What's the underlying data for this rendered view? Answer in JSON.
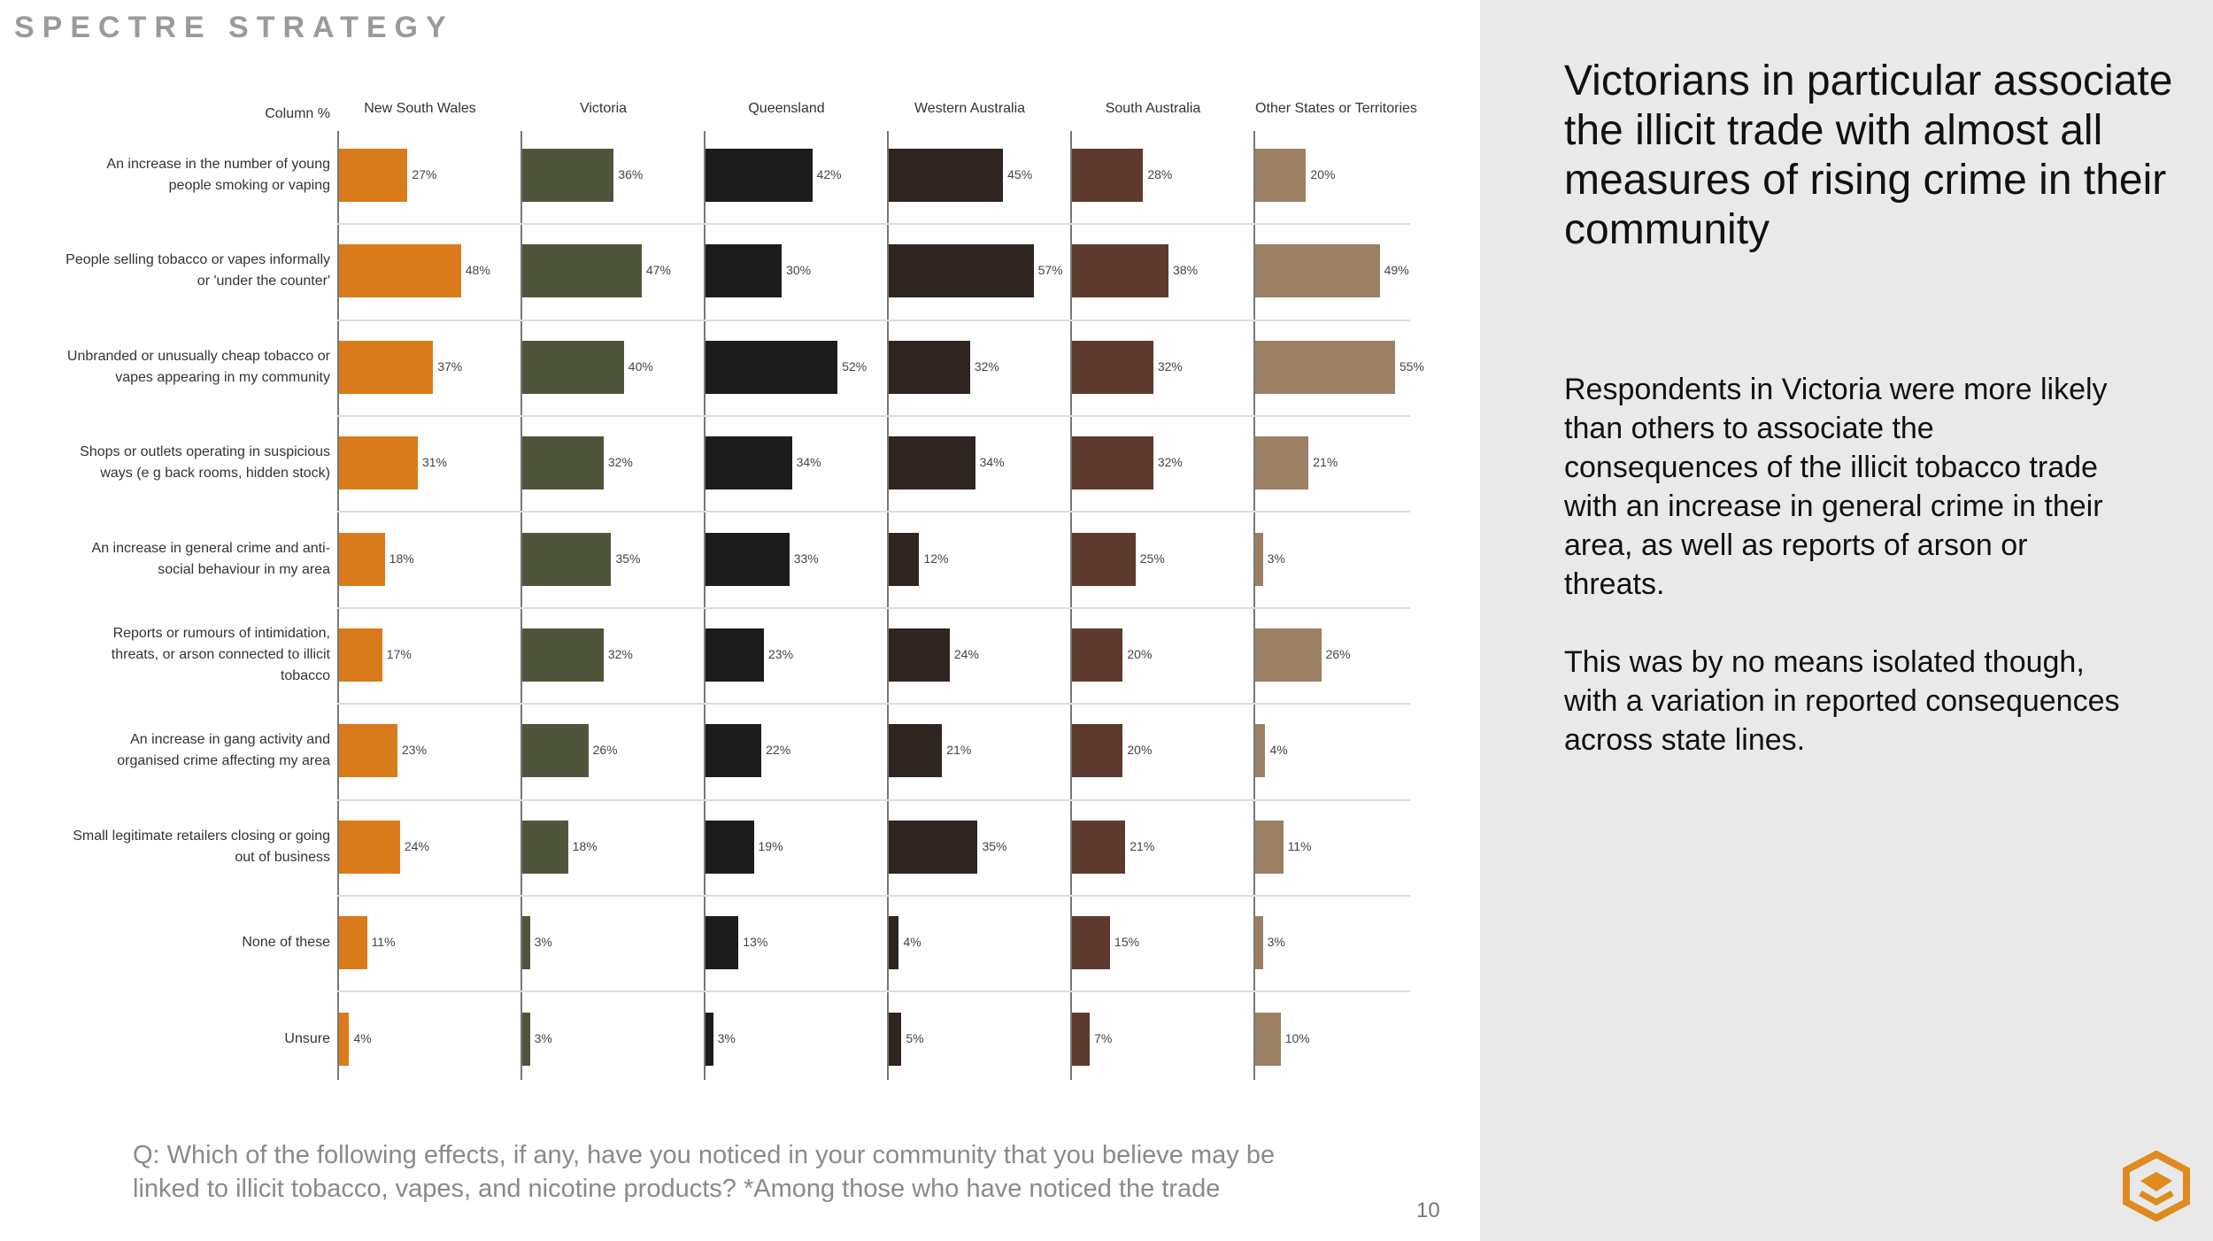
{
  "header": {
    "brand": "SPECTRE STRATEGY"
  },
  "sidebar": {
    "heading": "Victorians in particular associate the illicit trade with almost all measures of rising crime in their community",
    "paragraphs": [
      "Respondents in Victoria were more likely than others to associate the consequences of the illicit tobacco trade with an increase in general crime in their area, as well as reports of arson or threats.",
      "This was by no means isolated though, with a variation in reported consequences across state lines."
    ]
  },
  "footer": {
    "question": "Q: Which of the following effects, if any, have you noticed in your community that you believe may be linked to illicit tobacco, vapes, and nicotine products? *Among those who have noticed the trade",
    "page_number": 10
  },
  "chart_data": {
    "type": "bar",
    "orientation": "horizontal",
    "corner_label": "Column %",
    "categories": [
      "An increase in the number of young people smoking or vaping",
      "People selling tobacco or vapes informally or 'under the counter'",
      "Unbranded or unusually cheap tobacco or vapes appearing in my community",
      "Shops or outlets operating in suspicious ways (e g  back rooms, hidden stock)",
      "An increase in general crime and anti-social behaviour in my area",
      "Reports or rumours of intimidation, threats, or arson connected to illicit tobacco",
      "An increase in gang activity and organised crime affecting my area",
      "Small legitimate retailers closing or going out of business",
      "None of these",
      "Unsure"
    ],
    "series": [
      {
        "name": "New South Wales",
        "color": "#d97b1a",
        "values": [
          27,
          48,
          37,
          31,
          18,
          17,
          23,
          24,
          11,
          4
        ],
        "value_labels": [
          "27%",
          "48%",
          "37%",
          "31%",
          "18%",
          "17%",
          "23%",
          "24%",
          "11%",
          "4%"
        ]
      },
      {
        "name": "Victoria",
        "color": "#4f553a",
        "values": [
          36,
          47,
          40,
          32,
          35,
          32,
          26,
          18,
          3,
          3
        ],
        "value_labels": [
          "36%",
          "47%",
          "40%",
          "32%",
          "35%",
          "32%",
          "26%",
          "18%",
          "3%",
          "3%"
        ]
      },
      {
        "name": "Queensland",
        "color": "#1c1c1c",
        "values": [
          42,
          30,
          52,
          34,
          33,
          23,
          22,
          19,
          13,
          3
        ],
        "value_labels": [
          "42%",
          "30%",
          "52%",
          "34%",
          "33%",
          "23%",
          "22%",
          "19%",
          "13%",
          "3%"
        ]
      },
      {
        "name": "Western Australia",
        "color": "#2e2520",
        "values": [
          45,
          57,
          32,
          34,
          12,
          24,
          21,
          35,
          4,
          5
        ],
        "value_labels": [
          "45%",
          "57%",
          "32%",
          "34%",
          "12%",
          "24%",
          "21%",
          "35%",
          "4%",
          "5%"
        ]
      },
      {
        "name": "South Australia",
        "color": "#5e3a2e",
        "values": [
          28,
          38,
          32,
          32,
          25,
          20,
          20,
          21,
          15,
          7
        ],
        "value_labels": [
          "28%",
          "38%",
          "32%",
          "32%",
          "25%",
          "20%",
          "20%",
          "21%",
          "15%",
          "7%"
        ]
      },
      {
        "name": "Other States or Territories",
        "color": "#9c8063",
        "values": [
          20,
          49,
          55,
          21,
          3,
          26,
          4,
          11,
          3,
          10
        ],
        "value_labels": [
          "20%",
          "49%",
          "55%",
          "21%",
          "3%",
          "26%",
          "4%",
          "11%",
          "3%",
          "10%"
        ]
      }
    ]
  }
}
